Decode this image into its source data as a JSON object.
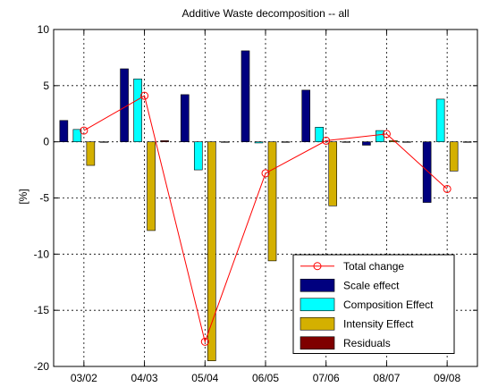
{
  "chart_data": {
    "type": "bar",
    "title": "Additive Waste decomposition -- all",
    "xlabel": "",
    "ylabel": "[%]",
    "categories": [
      "03/02",
      "04/03",
      "05/04",
      "06/05",
      "07/06",
      "08/07",
      "09/08"
    ],
    "ylim": [
      -20,
      10
    ],
    "yticks": [
      -20,
      -15,
      -10,
      -5,
      0,
      5,
      10
    ],
    "grid": true,
    "legend_position": "bottom-right",
    "series": [
      {
        "name": "Scale effect",
        "color": "#00007f",
        "values": [
          1.9,
          6.5,
          4.2,
          8.1,
          4.6,
          -0.3,
          -5.4
        ]
      },
      {
        "name": "Composition Effect",
        "color": "#00ffff",
        "values": [
          1.1,
          5.6,
          -2.5,
          -0.1,
          1.3,
          1.0,
          3.8
        ]
      },
      {
        "name": "Intensity Effect",
        "color": "#d4b000",
        "values": [
          -2.1,
          -7.9,
          -19.5,
          -10.6,
          -5.7,
          0.1,
          -2.6
        ]
      },
      {
        "name": "Residuals",
        "color": "#7f0000",
        "values": [
          0,
          0.1,
          0,
          0,
          0,
          0,
          0
        ]
      }
    ],
    "line_series": {
      "name": "Total change",
      "color": "#ff0000",
      "values": [
        1.0,
        4.1,
        -17.8,
        -2.8,
        0.1,
        0.7,
        -4.2
      ]
    }
  }
}
